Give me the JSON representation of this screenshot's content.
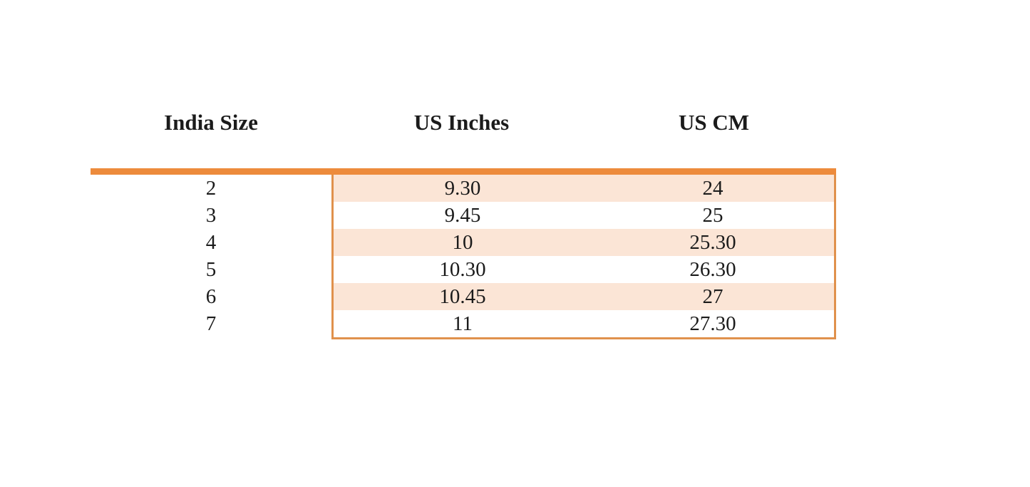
{
  "chart_data": {
    "type": "table",
    "title": "",
    "columns": [
      "India Size",
      "US Inches",
      "US CM"
    ],
    "rows": [
      [
        "2",
        "9.30",
        "24"
      ],
      [
        "3",
        "9.45",
        "25"
      ],
      [
        "4",
        "10",
        "25.30"
      ],
      [
        "5",
        "10.30",
        "26.30"
      ],
      [
        "6",
        "10.45",
        "27"
      ],
      [
        "7",
        "11",
        "27.30"
      ]
    ],
    "layout_hints": {
      "striped_rows": "odd rows shaded",
      "bordered_columns": [
        "US Inches",
        "US CM"
      ],
      "header_divider": "thick orange bar"
    }
  },
  "colors": {
    "accent_bar": "#ED8B3C",
    "box_border": "#E0914C",
    "stripe": "#FBE5D6",
    "text": "#1B1B1B",
    "background": "#FFFFFF"
  }
}
